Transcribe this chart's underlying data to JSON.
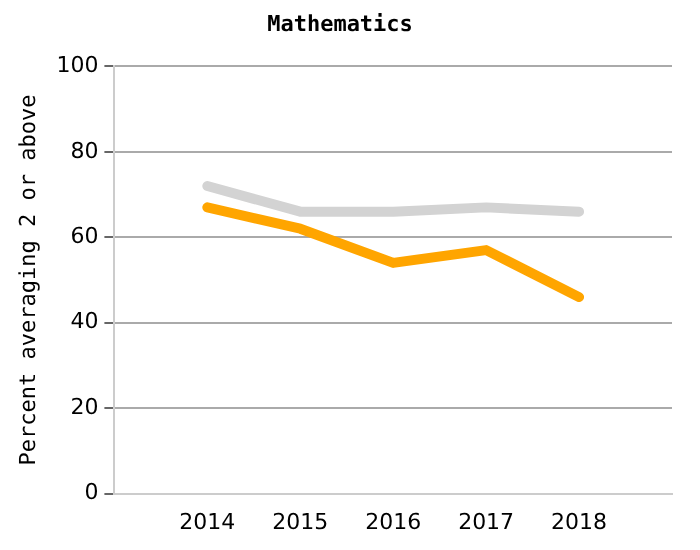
{
  "chart_data": {
    "type": "line",
    "title": "Mathematics",
    "ylabel": "Percent averaging 2 or above",
    "categories": [
      null,
      "2014",
      "2015",
      "2016",
      "2017",
      "2018",
      null
    ],
    "series": [
      {
        "color": "#d3d3d3",
        "values": [
          null,
          72,
          66,
          66,
          67,
          66,
          null
        ]
      },
      {
        "color": "#ffa500",
        "values": [
          null,
          67,
          62,
          54,
          57,
          46,
          null
        ]
      }
    ],
    "ylim": [
      0,
      100
    ],
    "yticks": [
      0,
      20,
      40,
      60,
      80,
      100
    ],
    "grid": "y",
    "legend": false,
    "marker": "none"
  }
}
